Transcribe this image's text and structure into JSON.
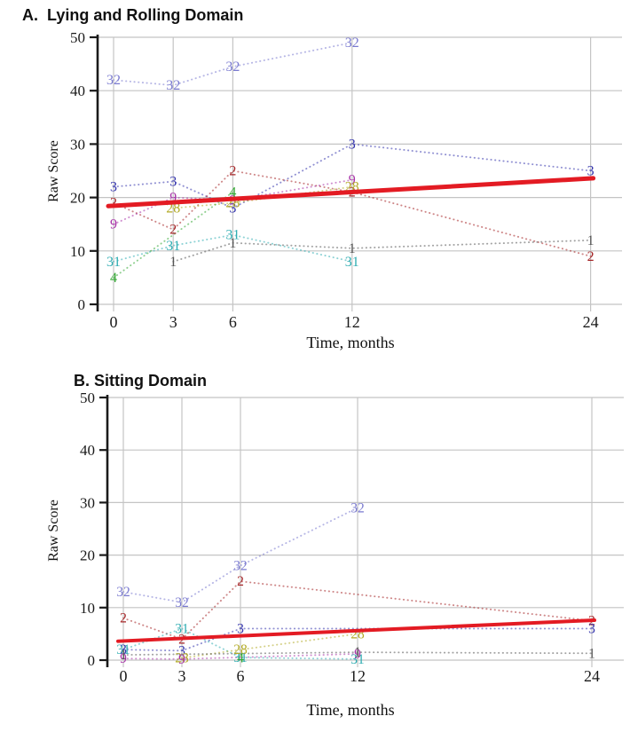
{
  "figure": {
    "background": "#ffffff",
    "gridline_color": "#c4c4c4",
    "axis_color": "#1a1a1a",
    "trend_color": "#e31b23"
  },
  "chart_data": [
    {
      "type": "line",
      "title": "A.  Lying and Rolling Domain",
      "xlabel": "Time, months",
      "ylabel": "Raw Score",
      "xticks": [
        0,
        3,
        6,
        12,
        24
      ],
      "yticks": [
        0,
        10,
        20,
        30,
        40,
        50
      ],
      "xlim": [
        0,
        24
      ],
      "ylim": [
        0,
        50
      ],
      "grid": true,
      "legend": "none; points labeled by subject id",
      "line_style": "dotted",
      "trend": {
        "label": "fit-line",
        "color": "#e31b23",
        "points": [
          [
            0,
            18.4
          ],
          [
            24,
            23.6
          ]
        ]
      },
      "series": [
        {
          "name": "32",
          "color": "#7a7ad0",
          "points": [
            [
              0,
              42
            ],
            [
              3,
              41
            ],
            [
              6,
              44.5
            ],
            [
              12,
              49
            ]
          ]
        },
        {
          "name": "3",
          "color": "#3434ad",
          "points": [
            [
              0,
              22
            ],
            [
              3,
              23
            ],
            [
              6,
              18
            ],
            [
              12,
              30
            ],
            [
              24,
              25
            ]
          ]
        },
        {
          "name": "2",
          "color": "#a52527",
          "points": [
            [
              0,
              19
            ],
            [
              3,
              14
            ],
            [
              6,
              25
            ],
            [
              12,
              21
            ],
            [
              24,
              9
            ]
          ]
        },
        {
          "name": "9",
          "color": "#a833a8",
          "points": [
            [
              0,
              15
            ],
            [
              3,
              20
            ],
            [
              6,
              19.5
            ],
            [
              12,
              23.3
            ]
          ]
        },
        {
          "name": "28",
          "color": "#b3ab28",
          "points": [
            [
              3,
              18
            ],
            [
              6,
              19
            ],
            [
              12,
              22
            ]
          ]
        },
        {
          "name": "31",
          "color": "#2fadb2",
          "points": [
            [
              0,
              8
            ],
            [
              3,
              11
            ],
            [
              6,
              13
            ],
            [
              12,
              8
            ]
          ]
        },
        {
          "name": "4",
          "color": "#33a833",
          "points": [
            [
              0,
              5
            ],
            [
              6,
              21
            ]
          ]
        },
        {
          "name": "1",
          "color": "#555555",
          "points": [
            [
              3,
              8
            ],
            [
              6,
              11.5
            ],
            [
              12,
              10.5
            ],
            [
              24,
              12
            ]
          ]
        }
      ]
    },
    {
      "type": "line",
      "title": "B. Sitting Domain",
      "xlabel": "Time, months",
      "ylabel": "Raw Score",
      "xticks": [
        0,
        3,
        6,
        12,
        24
      ],
      "yticks": [
        0,
        10,
        20,
        30,
        40,
        50
      ],
      "xlim": [
        0,
        24
      ],
      "ylim": [
        0,
        50
      ],
      "grid": true,
      "legend": "none; points labeled by subject id",
      "line_style": "dotted",
      "trend": {
        "label": "fit-line",
        "color": "#e31b23",
        "points": [
          [
            0,
            3.6
          ],
          [
            24,
            7.6
          ]
        ]
      },
      "series": [
        {
          "name": "32",
          "color": "#7a7ad0",
          "points": [
            [
              0,
              13
            ],
            [
              3,
              11
            ],
            [
              6,
              18
            ],
            [
              12,
              29
            ]
          ]
        },
        {
          "name": "2",
          "color": "#a52527",
          "points": [
            [
              0,
              8
            ],
            [
              3,
              4
            ],
            [
              6,
              15
            ],
            [
              24,
              7.5
            ]
          ]
        },
        {
          "name": "31",
          "color": "#2fadb2",
          "points": [
            [
              0,
              2
            ],
            [
              3,
              6
            ],
            [
              6,
              0.5
            ],
            [
              12,
              0.2
            ]
          ]
        },
        {
          "name": "3",
          "color": "#3434ad",
          "points": [
            [
              0,
              2
            ],
            [
              3,
              1.8
            ],
            [
              6,
              6
            ],
            [
              24,
              6
            ]
          ]
        },
        {
          "name": "28",
          "color": "#b3ab28",
          "points": [
            [
              3,
              0.4
            ],
            [
              6,
              2
            ],
            [
              12,
              5
            ]
          ]
        },
        {
          "name": "9",
          "color": "#a833a8",
          "points": [
            [
              0,
              0.3
            ],
            [
              3,
              0.2
            ],
            [
              12,
              1.2
            ]
          ]
        },
        {
          "name": "4",
          "color": "#33a833",
          "points": [
            [
              6,
              0.4
            ]
          ]
        },
        {
          "name": "1",
          "color": "#555555",
          "points": [
            [
              0,
              1
            ],
            [
              12,
              1.5
            ],
            [
              24,
              1.3
            ]
          ]
        }
      ]
    }
  ]
}
